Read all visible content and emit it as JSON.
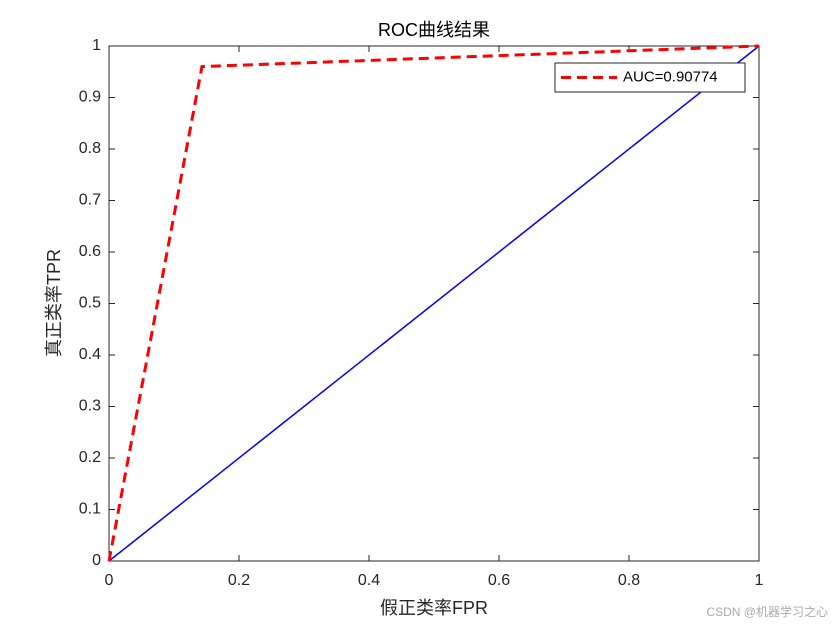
{
  "chart_data": {
    "type": "line",
    "title": "ROC曲线结果",
    "xlabel": "假正类率FPR",
    "ylabel": "真正类率TPR",
    "xlim": [
      0,
      1
    ],
    "ylim": [
      0,
      1
    ],
    "xticks": [
      0,
      0.2,
      0.4,
      0.6,
      0.8,
      1
    ],
    "yticks": [
      0,
      0.1,
      0.2,
      0.3,
      0.4,
      0.5,
      0.6,
      0.7,
      0.8,
      0.9,
      1
    ],
    "grid": false,
    "legend": "northeast",
    "series": [
      {
        "name": "AUC=0.90774",
        "color": "#ff0000",
        "dash": true,
        "x": [
          0,
          0.143,
          1
        ],
        "values": [
          0,
          0.96,
          1
        ]
      },
      {
        "color": "#0000ff",
        "dash": false,
        "x": [
          0,
          1
        ],
        "values": [
          0,
          1
        ]
      }
    ],
    "watermark": "CSDN @机器学习之心"
  }
}
